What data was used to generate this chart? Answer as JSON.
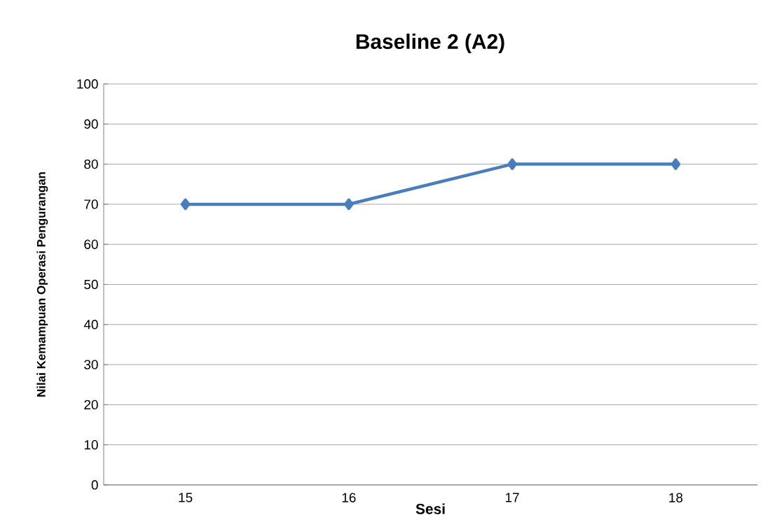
{
  "chart_data": {
    "type": "line",
    "title": "Baseline 2 (A2)",
    "xlabel": "Sesi",
    "ylabel": "Nilai Kemampuan Operasi Pengurangan",
    "categories": [
      "15",
      "16",
      "17",
      "18"
    ],
    "series": [
      {
        "color": "#4a7ebb",
        "values": [
          70,
          70,
          80,
          80
        ]
      }
    ],
    "ylim": [
      0,
      100
    ],
    "yticks": [
      0,
      10,
      20,
      30,
      40,
      50,
      60,
      70,
      80,
      90,
      100
    ],
    "grid": "y",
    "marker": "diamond",
    "line_style": "solid"
  }
}
